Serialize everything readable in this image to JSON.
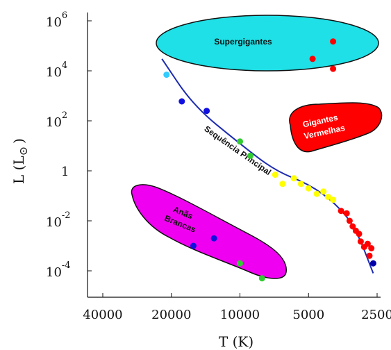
{
  "chart_data": {
    "type": "scatter",
    "title": "",
    "xlabel": "T (K)",
    "ylabel": "L (L",
    "ylabel_symbol": "⊙",
    "ylabel_close": ")",
    "x_scale": "log",
    "x_reversed": true,
    "y_scale": "log",
    "x_ticks": [
      {
        "value": 40000,
        "label": "40000"
      },
      {
        "value": 20000,
        "label": "20000"
      },
      {
        "value": 10000,
        "label": "10000"
      },
      {
        "value": 5000,
        "label": "5000"
      },
      {
        "value": 2500,
        "label": "2500"
      }
    ],
    "y_ticks": [
      {
        "value": 1000000,
        "base": "10",
        "exp": "6"
      },
      {
        "value": 10000,
        "base": "10",
        "exp": "4"
      },
      {
        "value": 100,
        "base": "10",
        "exp": "2"
      },
      {
        "value": 1,
        "base": "1",
        "exp": ""
      },
      {
        "value": 0.01,
        "base": "10",
        "exp": "-2"
      },
      {
        "value": 0.0001,
        "base": "10",
        "exp": "-4"
      }
    ],
    "regions": [
      {
        "name": "Supergigantes",
        "color": "#1ee0e6"
      },
      {
        "name": "Gigantes Vermelhas",
        "lines": [
          "Gigantes",
          "Vermelhas"
        ],
        "color": "#ff0000"
      },
      {
        "name": "Anãs Brancas",
        "lines": [
          "Anãs",
          "Brancas"
        ],
        "color": "#f000f0"
      }
    ],
    "main_sequence_label": "Sequência Principal",
    "main_sequence_line": [
      {
        "T": 22000,
        "L": 30000
      },
      {
        "T": 16000,
        "L": 400
      },
      {
        "T": 10000,
        "L": 12
      },
      {
        "T": 7000,
        "L": 1
      },
      {
        "T": 5000,
        "L": 0.3
      },
      {
        "T": 3800,
        "L": 0.05
      },
      {
        "T": 3100,
        "L": 0.005
      },
      {
        "T": 2600,
        "L": 8e-05
      }
    ],
    "points": [
      {
        "T": 21000,
        "L": 7000,
        "color": "#33ccff"
      },
      {
        "T": 18000,
        "L": 600,
        "color": "#1010e0"
      },
      {
        "T": 14000,
        "L": 250,
        "color": "#1010e0"
      },
      {
        "T": 10000,
        "L": 15,
        "color": "#33cc33"
      },
      {
        "T": 9000,
        "L": 4,
        "color": "#33cc33"
      },
      {
        "T": 7000,
        "L": 0.7,
        "color": "#ffff00"
      },
      {
        "T": 6500,
        "L": 0.3,
        "color": "#ffff00"
      },
      {
        "T": 5800,
        "L": 0.5,
        "color": "#ffff00"
      },
      {
        "T": 5400,
        "L": 0.3,
        "color": "#ffff00"
      },
      {
        "T": 5000,
        "L": 0.2,
        "color": "#ffff00"
      },
      {
        "T": 4600,
        "L": 0.12,
        "color": "#ffff00"
      },
      {
        "T": 4300,
        "L": 0.15,
        "color": "#ffff00"
      },
      {
        "T": 4100,
        "L": 0.09,
        "color": "#ffff00"
      },
      {
        "T": 3900,
        "L": 0.07,
        "color": "#ffff00"
      },
      {
        "T": 3600,
        "L": 0.025,
        "color": "#ff0000"
      },
      {
        "T": 3400,
        "L": 0.02,
        "color": "#ff0000"
      },
      {
        "T": 3300,
        "L": 0.01,
        "color": "#ff0000"
      },
      {
        "T": 3200,
        "L": 0.006,
        "color": "#ff0000"
      },
      {
        "T": 3100,
        "L": 0.004,
        "color": "#ff0000"
      },
      {
        "T": 3000,
        "L": 0.003,
        "color": "#ff0000"
      },
      {
        "T": 2950,
        "L": 0.0015,
        "color": "#ff0000"
      },
      {
        "T": 2850,
        "L": 0.0009,
        "color": "#ff0000"
      },
      {
        "T": 2750,
        "L": 0.0012,
        "color": "#ff0000"
      },
      {
        "T": 2700,
        "L": 0.0004,
        "color": "#ff0000"
      },
      {
        "T": 2650,
        "L": 0.0008,
        "color": "#ff0000"
      },
      {
        "T": 2600,
        "L": 0.0002,
        "color": "#0000aa"
      },
      {
        "T": 4800,
        "L": 30000,
        "color": "#ff0000"
      },
      {
        "T": 3900,
        "L": 150000,
        "color": "#ff0000"
      },
      {
        "T": 3900,
        "L": 12000,
        "color": "#ff0000"
      },
      {
        "T": 16000,
        "L": 0.001,
        "color": "#1010e0"
      },
      {
        "T": 13000,
        "L": 0.002,
        "color": "#1010e0"
      },
      {
        "T": 10000,
        "L": 0.0002,
        "color": "#33cc33"
      },
      {
        "T": 8000,
        "L": 5e-05,
        "color": "#33cc33"
      }
    ]
  }
}
